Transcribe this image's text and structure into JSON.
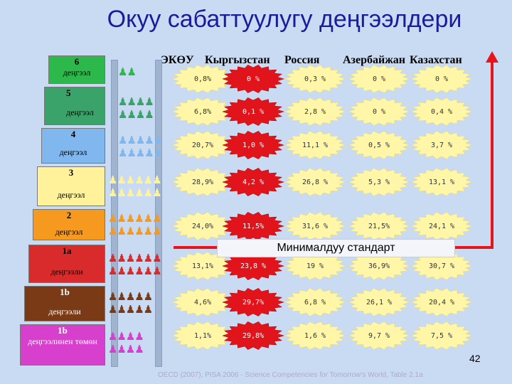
{
  "title": "Окуу сабаттуулугу деңгээлдери",
  "columns": [
    "ЭКӨУ",
    "Кыргызстан",
    "Россия",
    "Азербайжан",
    "Казахстан"
  ],
  "levels": [
    {
      "num": "6",
      "label": "деңгээл",
      "color": "#2db84b"
    },
    {
      "num": "5",
      "label": "деңгээл",
      "color": "#3aa36a"
    },
    {
      "num": "4",
      "label": "деңгээл",
      "color": "#7fb7ee"
    },
    {
      "num": "3",
      "label": "деңгээл",
      "color": "#fff29a"
    },
    {
      "num": "2",
      "label": "деңгээл",
      "color": "#f59a1f"
    },
    {
      "num": "1a",
      "label": "деңгээли",
      "color": "#d92b2b"
    },
    {
      "num": "1b",
      "label": "деңгээли",
      "color": "#7a3a16"
    },
    {
      "num": "1b",
      "label": "деңгээлинен төмөн",
      "color": "#d640cc"
    }
  ],
  "rows": [
    [
      "0,8%",
      "0 %",
      "0,3 %",
      "0 %",
      "0 %"
    ],
    [
      "6,8%",
      "0,1 %",
      "2,8 %",
      "0 %",
      "0,4 %"
    ],
    [
      "20,7%",
      "1,0 %",
      "11,1 %",
      "0,5 %",
      "3,7 %"
    ],
    [
      "28,9%",
      "4,2 %",
      "26,8 %",
      "5,3 %",
      "13,1 %"
    ],
    [
      "24,0%",
      "11,5%",
      "31,6 %",
      "21,5%",
      "24,1 %"
    ],
    [
      "13,1%",
      "23,8 %",
      "19 %",
      "36,9%",
      "30,7 %"
    ],
    [
      "4,6%",
      "29,7%",
      "6,8 %",
      "26,1 %",
      "20,4 %"
    ],
    [
      "1,1%",
      "29,8%",
      "1,6 %",
      "9,7 %",
      "7,5 %"
    ]
  ],
  "standard_label": "Минималдуу стандарт",
  "page_number": "42",
  "source": "OECD (2007), PISA 2006 - Science Competencies for Tomorrow's World, Table 2.1a",
  "colors": {
    "title": "#1c1c9a",
    "burst_yellow": "#fff6a8",
    "burst_red": "#e0141a",
    "arrow": "#e8141a"
  }
}
